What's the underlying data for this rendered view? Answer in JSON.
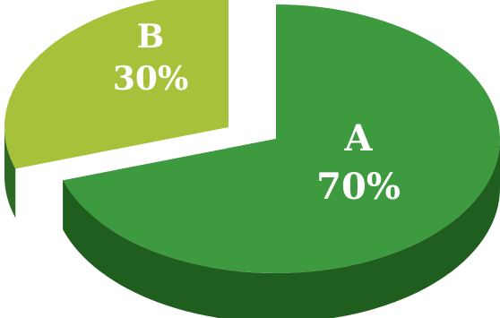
{
  "chart_data": {
    "type": "pie",
    "style": "3d-exploded",
    "slices": [
      {
        "name": "A",
        "value": 70,
        "value_label": "70%",
        "color": "#3e9a3e",
        "side_color": "#1f5e1f"
      },
      {
        "name": "B",
        "value": 30,
        "value_label": "30%",
        "color": "#a7c23a",
        "side_color": "#2d6b24"
      }
    ]
  }
}
